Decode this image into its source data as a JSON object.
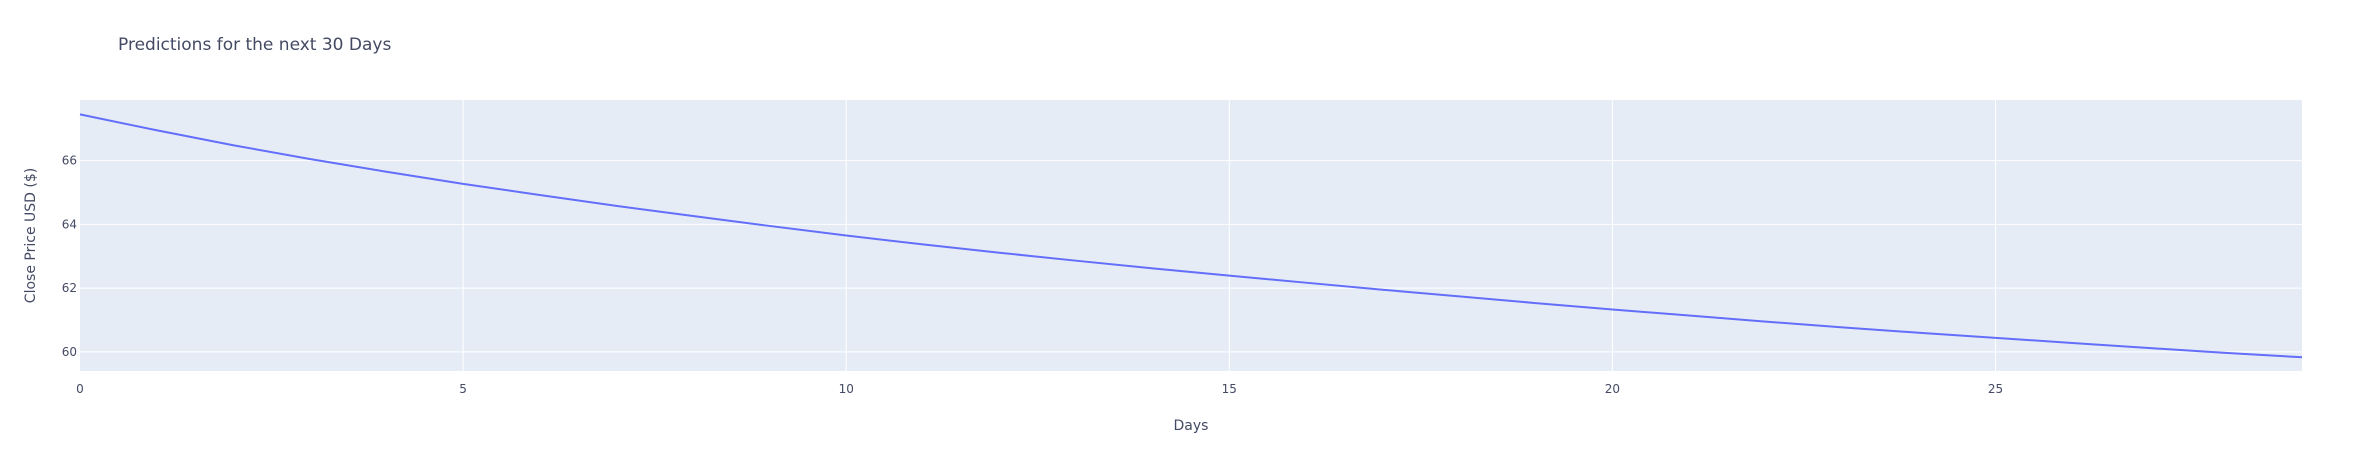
{
  "chart_data": {
    "type": "line",
    "title": "Predictions for the next 30 Days",
    "xlabel": "Days",
    "ylabel": "Close Price USD ($)",
    "xlim": [
      0,
      29
    ],
    "ylim": [
      59.4,
      67.9
    ],
    "xticks": [
      0,
      5,
      10,
      15,
      20,
      25
    ],
    "yticks": [
      60,
      62,
      64,
      66
    ],
    "grid": true,
    "colors": {
      "line": "#636efa",
      "plot_bg": "#e5ecf6"
    },
    "series": [
      {
        "x": [
          0,
          1,
          2,
          3,
          4,
          5,
          6,
          7,
          8,
          9,
          10,
          11,
          12,
          13,
          14,
          15,
          16,
          17,
          18,
          19,
          20,
          21,
          22,
          23,
          24,
          25,
          26,
          27,
          28,
          29
        ],
        "values": [
          67.45,
          66.95,
          66.48,
          66.05,
          65.65,
          65.27,
          64.92,
          64.58,
          64.26,
          63.95,
          63.65,
          63.37,
          63.11,
          62.86,
          62.62,
          62.39,
          62.17,
          61.95,
          61.74,
          61.53,
          61.33,
          61.14,
          60.95,
          60.77,
          60.6,
          60.44,
          60.28,
          60.12,
          59.97,
          59.83
        ]
      }
    ]
  }
}
